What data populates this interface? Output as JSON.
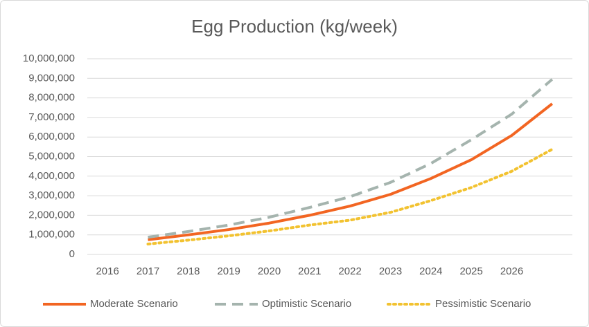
{
  "chart_data": {
    "type": "line",
    "title": "Egg Production (kg/week)",
    "categories": [
      "2016",
      "2017",
      "2018",
      "2019",
      "2020",
      "2021",
      "2022",
      "2023",
      "2024",
      "2025",
      "2026",
      null
    ],
    "series": [
      {
        "name": "Moderate Scenario",
        "color": "#f26522",
        "dash": "solid",
        "values": [
          null,
          750000,
          1000000,
          1270000,
          1600000,
          2000000,
          2470000,
          3070000,
          3880000,
          4840000,
          6080000,
          7700000
        ]
      },
      {
        "name": "Optimistic Scenario",
        "color": "#a5b4ae",
        "dash": "dashed",
        "values": [
          null,
          880000,
          1170000,
          1500000,
          1900000,
          2400000,
          2950000,
          3680000,
          4650000,
          5860000,
          7170000,
          8950000
        ]
      },
      {
        "name": "Pessimistic Scenario",
        "color": "#f2c230",
        "dash": "dotted",
        "values": [
          null,
          530000,
          730000,
          950000,
          1200000,
          1500000,
          1750000,
          2150000,
          2750000,
          3420000,
          4250000,
          5370000
        ]
      }
    ],
    "ylim": [
      0,
      10000000
    ],
    "yticks": [
      0,
      {
        "value": 1000000,
        "label": "1,000,000"
      },
      {
        "value": 2000000,
        "label": "2,000,000"
      },
      {
        "value": 3000000,
        "label": "3,000,000"
      },
      {
        "value": 4000000,
        "label": "4,000,000"
      },
      {
        "value": 5000000,
        "label": "5,000,000"
      },
      {
        "value": 6000000,
        "label": "6,000,000"
      },
      {
        "value": 7000000,
        "label": "7,000,000"
      },
      {
        "value": 8000000,
        "label": "8,000,000"
      },
      {
        "value": 9000000,
        "label": "9,000,000"
      },
      {
        "value": 10000000,
        "label": "10,000,000"
      }
    ],
    "grid": true,
    "legend": "bottom"
  }
}
